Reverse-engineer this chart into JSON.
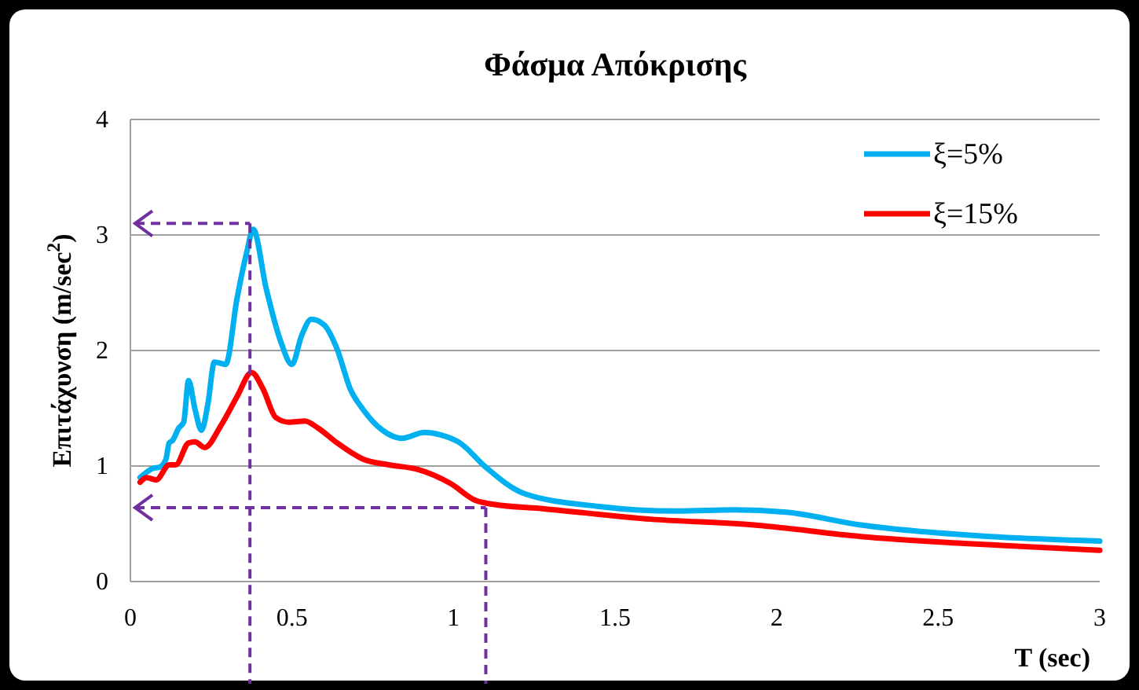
{
  "chart_data": {
    "type": "line",
    "title": "Φάσμα Απόκρισης",
    "xlabel": "T (sec)",
    "ylabel": "Επιτάχυνση (m/sec$^{2}$)",
    "xlim": [
      0,
      3
    ],
    "xticks": [
      0,
      0.5,
      1,
      1.5,
      2,
      2.5,
      3
    ],
    "ylim": [
      0,
      4
    ],
    "yticks": [
      0,
      1,
      2,
      3,
      4
    ],
    "grid": "y",
    "legend": "top right",
    "line_style": "solid",
    "marker": "none",
    "series": [
      {
        "name": "ξ=5%",
        "color": "#00b0f0",
        "x": [
          0.03,
          0.07,
          0.09,
          0.11,
          0.12,
          0.13,
          0.15,
          0.165,
          0.18,
          0.2,
          0.22,
          0.24,
          0.26,
          0.295,
          0.33,
          0.36,
          0.38,
          0.42,
          0.465,
          0.5,
          0.53,
          0.56,
          0.6,
          0.64,
          0.68,
          0.72,
          0.78,
          0.84,
          0.91,
          0.96,
          1.02,
          1.1,
          1.22,
          1.45,
          1.69,
          1.87,
          2.03,
          2.26,
          2.42,
          2.66,
          3
        ],
        "values": [
          0.9,
          0.98,
          0.99,
          1.06,
          1.2,
          1.22,
          1.33,
          1.38,
          1.74,
          1.49,
          1.31,
          1.54,
          1.9,
          1.88,
          2.45,
          2.85,
          3.05,
          2.54,
          2.08,
          1.88,
          2.13,
          2.27,
          2.22,
          2.01,
          1.67,
          1.49,
          1.31,
          1.24,
          1.29,
          1.27,
          1.2,
          0.99,
          0.76,
          0.65,
          0.61,
          0.62,
          0.6,
          0.49,
          0.44,
          0.39,
          0.35
        ]
      },
      {
        "name": "ξ=15%",
        "color": "#ff0000",
        "x": [
          0.03,
          0.05,
          0.08,
          0.12,
          0.14,
          0.18,
          0.2,
          0.23,
          0.28,
          0.33,
          0.375,
          0.41,
          0.45,
          0.49,
          0.54,
          0.58,
          0.64,
          0.72,
          0.8,
          0.89,
          0.99,
          1.07,
          1.12,
          1.28,
          1.61,
          1.93,
          2.26,
          2.58,
          3
        ],
        "values": [
          0.86,
          0.9,
          0.88,
          1.01,
          1.01,
          1.2,
          1.21,
          1.16,
          1.35,
          1.6,
          1.81,
          1.67,
          1.42,
          1.38,
          1.39,
          1.33,
          1.2,
          1.06,
          1.01,
          0.97,
          0.85,
          0.7,
          0.67,
          0.63,
          0.54,
          0.49,
          0.39,
          0.33,
          0.27
        ]
      }
    ],
    "ref_lines": [
      {
        "axis": "x",
        "value": 0.37,
        "color": "#7030a0",
        "line_style": "dashed"
      },
      {
        "axis": "y",
        "value": 3.1,
        "color": "#7030a0",
        "line_style": "dashed"
      },
      {
        "axis": "x",
        "value": 1.1,
        "color": "#7030a0",
        "line_style": "dashed"
      },
      {
        "axis": "y",
        "value": 0.64,
        "color": "#7030a0",
        "line_style": "dashed"
      }
    ]
  }
}
